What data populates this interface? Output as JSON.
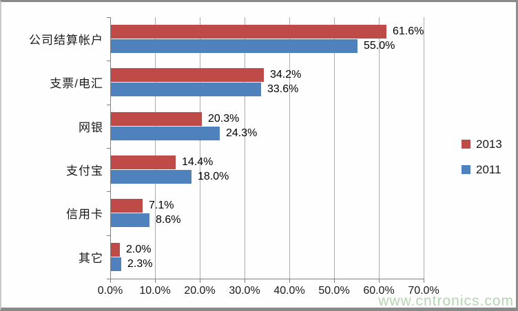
{
  "chart_data": {
    "type": "bar",
    "orientation": "horizontal",
    "title": "",
    "categories": [
      "公司结算帐户",
      "支票/电汇",
      "网银",
      "支付宝",
      "信用卡",
      "其它"
    ],
    "series": [
      {
        "name": "2013",
        "color": "#BE4B48",
        "values": [
          61.6,
          34.2,
          20.3,
          14.4,
          7.1,
          2.0
        ],
        "labels": [
          "61.6%",
          "34.2%",
          "20.3%",
          "14.4%",
          "7.1%",
          "2.0%"
        ]
      },
      {
        "name": "2011",
        "color": "#4F81BD",
        "values": [
          55.0,
          33.6,
          24.3,
          18.0,
          8.6,
          2.3
        ],
        "labels": [
          "55.0%",
          "33.6%",
          "24.3%",
          "18.0%",
          "8.6%",
          "2.3%"
        ]
      }
    ],
    "x_axis": {
      "min": 0,
      "max": 70,
      "step": 10,
      "tick_labels": [
        "0.0%",
        "10.0%",
        "20.0%",
        "30.0%",
        "40.0%",
        "50.0%",
        "60.0%",
        "70.0%"
      ]
    },
    "legend": {
      "position": "right",
      "entries": [
        "2013",
        "2011"
      ]
    },
    "grid": true
  },
  "watermark": {
    "text": "www.cntronics.com",
    "color": "#a9cfa4"
  }
}
